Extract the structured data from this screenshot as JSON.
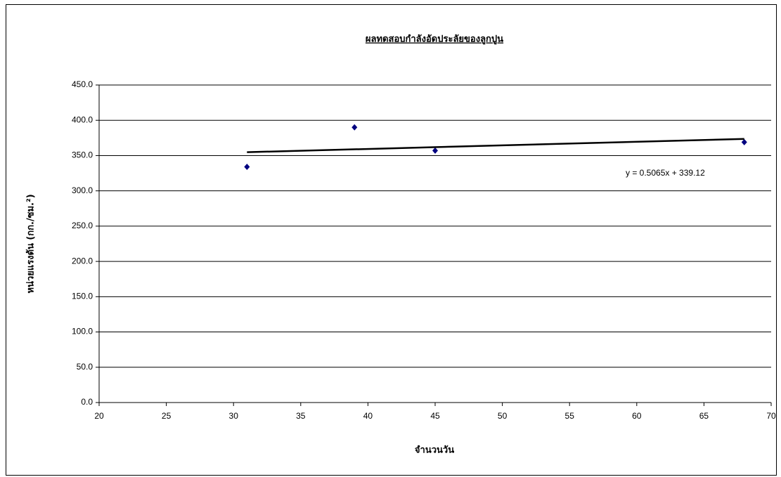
{
  "chart_data": {
    "type": "scatter",
    "title": "ผลทดสอบกำลังอัดประลัยของลูกปูน",
    "x_label": "จำนวนวัน",
    "y_label": "หน่วยแรงดัน (กก./ซม.²)",
    "series": [
      {
        "color": "#000080",
        "x": [
          31,
          39,
          45,
          68
        ],
        "values": [
          334,
          390,
          357,
          369
        ]
      }
    ],
    "trendline": {
      "label": "y = 0.5065x + 339.12",
      "color": "#000000",
      "x": [
        31,
        68
      ],
      "values": [
        354.8,
        373.6
      ]
    },
    "xlim": [
      20,
      70
    ],
    "xticks": [
      20,
      25,
      30,
      35,
      40,
      45,
      50,
      55,
      60,
      65,
      70
    ],
    "ylim": [
      0,
      450
    ],
    "yticks": [
      {
        "value": 0,
        "label": "0.0"
      },
      {
        "value": 50,
        "label": "50.0"
      },
      {
        "value": 100,
        "label": "100.0"
      },
      {
        "value": 150,
        "label": "150.0"
      },
      {
        "value": 200,
        "label": "200.0"
      },
      {
        "value": 250,
        "label": "250.0"
      },
      {
        "value": 300,
        "label": "300.0"
      },
      {
        "value": 350,
        "label": "350.0"
      },
      {
        "value": 400,
        "label": "400.0"
      },
      {
        "value": 450,
        "label": "450.0"
      }
    ],
    "grid": true
  }
}
